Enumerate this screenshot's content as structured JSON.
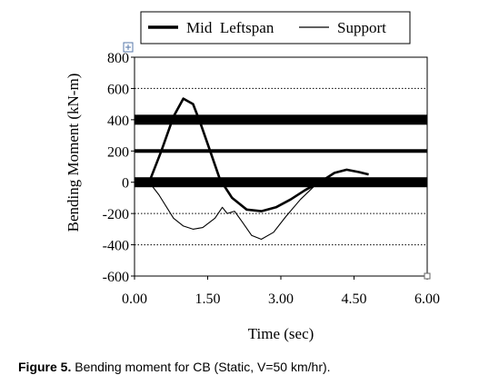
{
  "chart_data": {
    "type": "line",
    "xlabel": "Time  (sec)",
    "ylabel": "Bending Moment (kN-m)",
    "xlim": [
      0,
      6
    ],
    "ylim": [
      -600,
      800
    ],
    "x_ticks": [
      "0.00",
      "1.50",
      "3.00",
      "4.50",
      "6.00"
    ],
    "x_tick_values": [
      0,
      1.5,
      3,
      4.5,
      6
    ],
    "y_ticks": [
      "800",
      "600",
      "400",
      "200",
      "0",
      "-200",
      "-400",
      "-600"
    ],
    "y_tick_values": [
      800,
      600,
      400,
      200,
      0,
      -200,
      -400,
      -600
    ],
    "gridlines": [
      600,
      400,
      200,
      0,
      -200,
      -400
    ],
    "legend_position": "top",
    "series": [
      {
        "name": "Mid  Leftspan",
        "color": "#000000",
        "points": [
          [
            0.3,
            0
          ],
          [
            0.55,
            200
          ],
          [
            0.8,
            420
          ],
          [
            1.0,
            535
          ],
          [
            1.2,
            500
          ],
          [
            1.35,
            380
          ],
          [
            1.55,
            200
          ],
          [
            1.75,
            20
          ],
          [
            2.0,
            -100
          ],
          [
            2.3,
            -175
          ],
          [
            2.6,
            -185
          ],
          [
            2.9,
            -160
          ],
          [
            3.2,
            -110
          ],
          [
            3.5,
            -50
          ],
          [
            3.8,
            0
          ],
          [
            4.1,
            60
          ],
          [
            4.35,
            80
          ],
          [
            4.6,
            65
          ],
          [
            4.8,
            50
          ]
        ]
      },
      {
        "name": "Support",
        "color": "#000000",
        "points": [
          [
            0.3,
            0
          ],
          [
            0.5,
            -80
          ],
          [
            0.8,
            -230
          ],
          [
            1.0,
            -280
          ],
          [
            1.2,
            -300
          ],
          [
            1.4,
            -290
          ],
          [
            1.65,
            -230
          ],
          [
            1.8,
            -160
          ],
          [
            1.9,
            -200
          ],
          [
            2.05,
            -185
          ],
          [
            2.2,
            -250
          ],
          [
            2.4,
            -340
          ],
          [
            2.6,
            -365
          ],
          [
            2.85,
            -320
          ],
          [
            3.1,
            -220
          ],
          [
            3.4,
            -110
          ],
          [
            3.7,
            -20
          ],
          [
            3.95,
            30
          ]
        ]
      }
    ]
  },
  "caption": {
    "label": "Figure 5.",
    "text": " Bending moment for CB (Static, V=50 km/hr)."
  }
}
